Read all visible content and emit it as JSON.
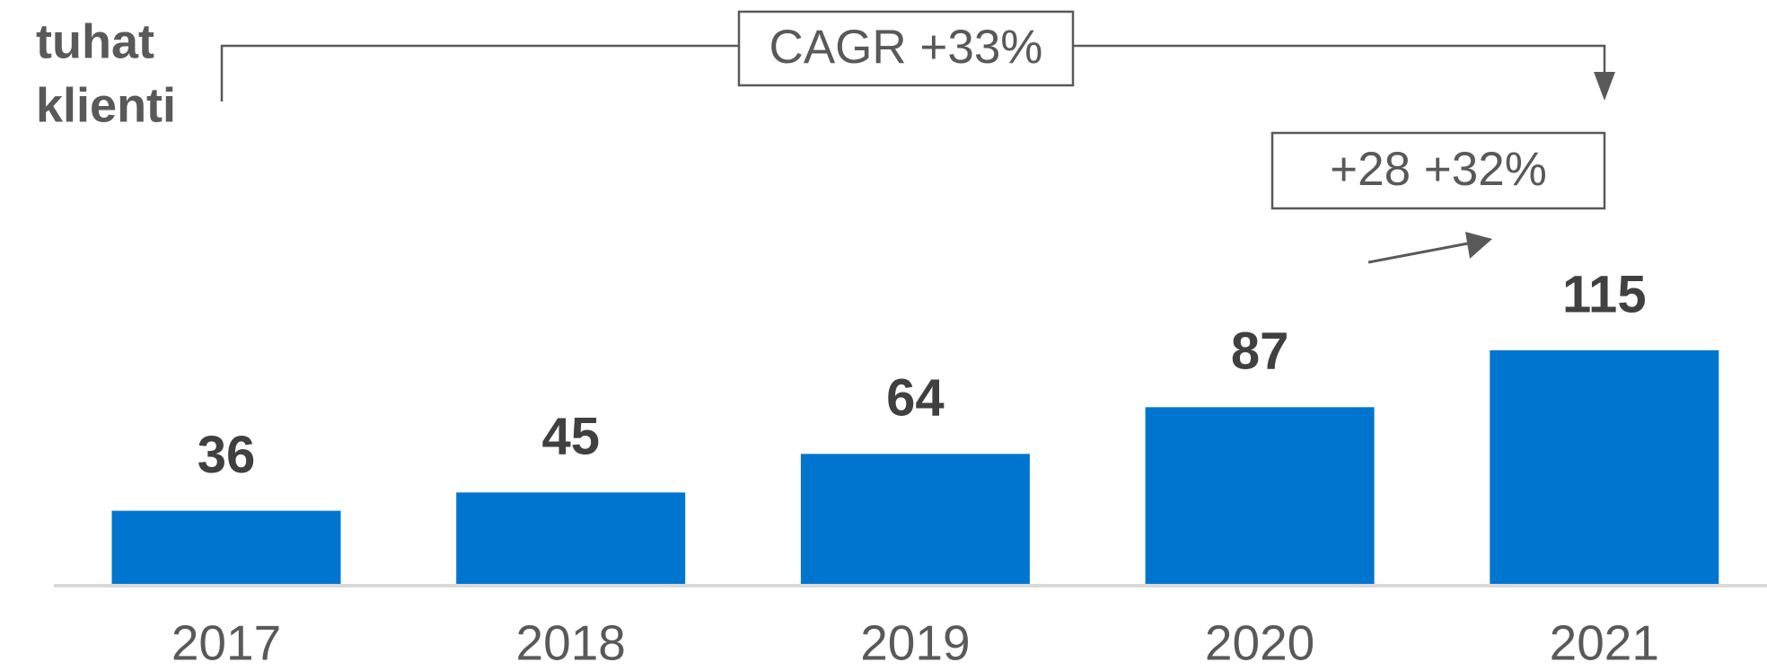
{
  "chart_data": {
    "type": "bar",
    "y_label": [
      "tuhat",
      "klienti"
    ],
    "categories": [
      "2017",
      "2018",
      "2019",
      "2020",
      "2021"
    ],
    "values": [
      36,
      45,
      64,
      87,
      115
    ],
    "color": "#0075d0",
    "annotations": [
      "CAGR +33%",
      "+28 +32%"
    ]
  }
}
